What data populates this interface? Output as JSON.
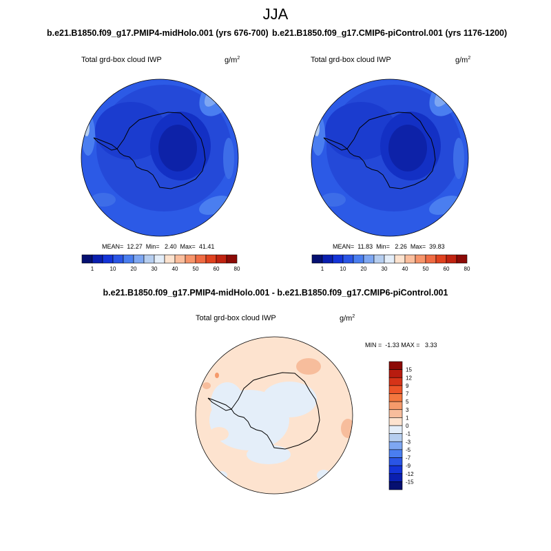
{
  "title": "JJA",
  "panels": [
    {
      "run": "b.e21.B1850.f09_g17.PMIP4-midHolo.001 (yrs 676-700)",
      "variable": "Total grd-box cloud IWP",
      "units_base": "g/m",
      "units_exp": "2",
      "stats": "MEAN=  12.27  Min=   2.40  Max=  41.41"
    },
    {
      "run": "b.e21.B1850.f09_g17.CMIP6-piControl.001 (yrs 1176-1200)",
      "variable": "Total grd-box cloud IWP",
      "units_base": "g/m",
      "units_exp": "2",
      "stats": "MEAN=  11.83  Min=   2.26  Max=  39.83"
    }
  ],
  "diff_panel": {
    "title": "b.e21.B1850.f09_g17.PMIP4-midHolo.001 - b.e21.B1850.f09_g17.CMIP6-piControl.001",
    "variable": "Total grd-box cloud IWP",
    "units_base": "g/m",
    "units_exp": "2",
    "stats": "MIN =  -1.33 MAX =   3.33"
  },
  "colorbar_field": {
    "labels": [
      "1",
      "10",
      "20",
      "30",
      "40",
      "50",
      "60",
      "80"
    ],
    "colors": [
      "#061071",
      "#0a1fb0",
      "#1434d8",
      "#2a55e6",
      "#4a7ef0",
      "#7ea7f2",
      "#b6ceef",
      "#e4eef9",
      "#fde3cf",
      "#fbbe9d",
      "#f7946a",
      "#f06b43",
      "#e0421f",
      "#c12310",
      "#8c0a06"
    ]
  },
  "colorbar_diff": {
    "labels": [
      "15",
      "12",
      "9",
      "7",
      "5",
      "3",
      "1",
      "0",
      "-1",
      "-3",
      "-5",
      "-7",
      "-9",
      "-12",
      "-15"
    ],
    "colors": [
      "#8c0a06",
      "#b81c0f",
      "#d63318",
      "#ed5428",
      "#f4773f",
      "#f59a6b",
      "#f7bd9c",
      "#fde3cf",
      "#e4eef9",
      "#b6ceef",
      "#7ea7f2",
      "#4a7ef0",
      "#2a55e6",
      "#1434d8",
      "#0a1fb0",
      "#061071"
    ]
  }
}
